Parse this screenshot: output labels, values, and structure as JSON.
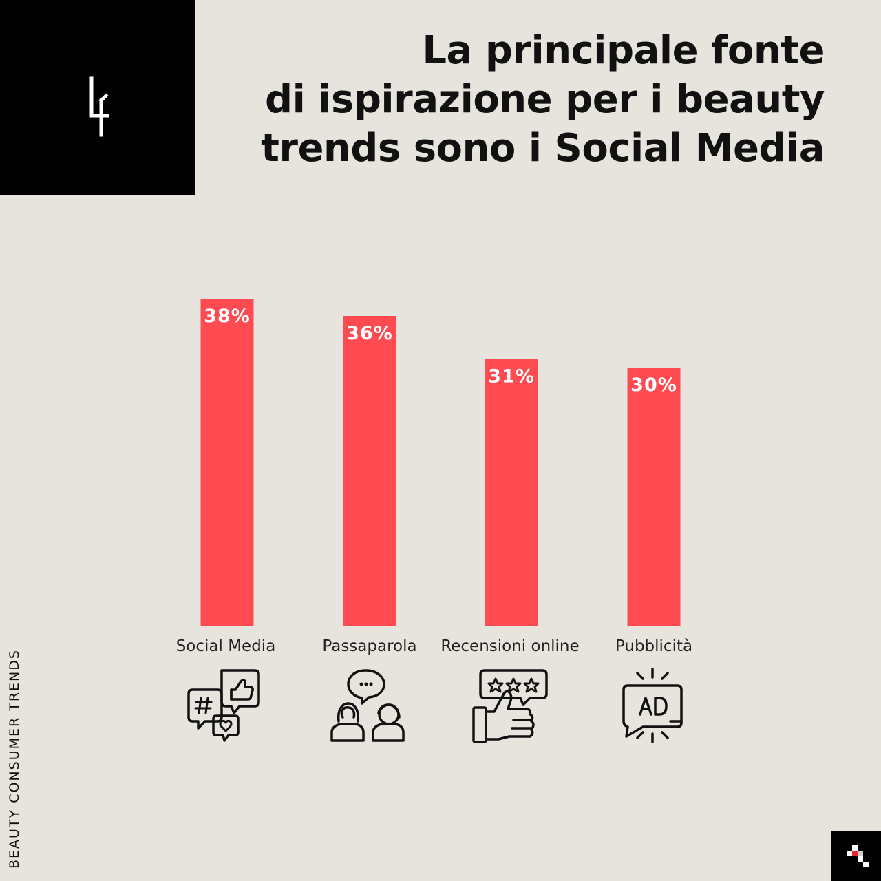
{
  "badge": {
    "number": "4"
  },
  "header": {
    "title_lines": [
      "La principale fonte",
      "di ispirazione per i beauty",
      "trends sono i Social Media"
    ]
  },
  "chart_data": {
    "type": "bar",
    "categories": [
      "Social Media",
      "Passaparola",
      "Recensioni online",
      "Pubblicità"
    ],
    "values": [
      38,
      36,
      31,
      30
    ],
    "value_labels": [
      "38%",
      "36%",
      "31%",
      "30%"
    ],
    "unit": "%",
    "ylim": [
      0,
      38
    ],
    "grid": false,
    "bar_color": "#fd4b51",
    "icons": [
      "social-media-icon",
      "word-of-mouth-icon",
      "online-review-icon",
      "advertising-icon"
    ]
  },
  "side_label": "BEAUTY CONSUMER TRENDS",
  "colors": {
    "background": "#e7e4de",
    "bar": "#fd4b51",
    "badge": "#000000",
    "logo_accent": "#e8242c"
  },
  "brand": {
    "logo_icon": "brand-logo-icon"
  }
}
